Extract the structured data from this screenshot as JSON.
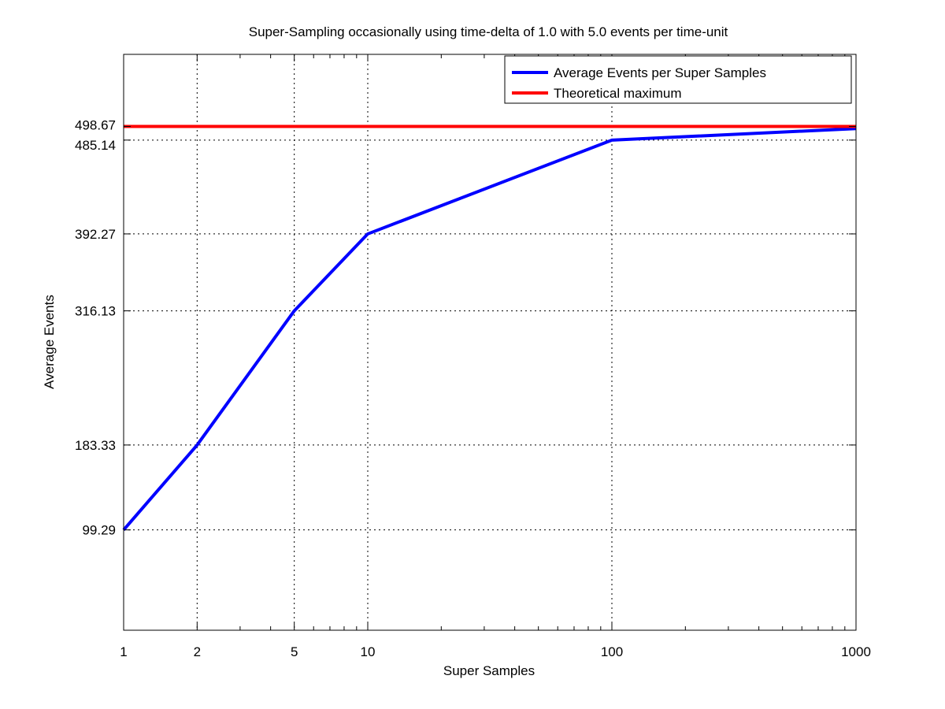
{
  "chart_data": {
    "type": "line",
    "title": "Super-Sampling occasionally using time-delta of 1.0 with 5.0 events per time-unit",
    "xlabel": "Super Samples",
    "ylabel": "Average Events",
    "xscale": "log",
    "xlim": [
      1,
      1000
    ],
    "ylim": [
      0,
      570
    ],
    "x_ticks": [
      1,
      2,
      5,
      10,
      100,
      1000
    ],
    "x_tick_labels": [
      "1",
      "2",
      "5",
      "10",
      "100",
      "1000"
    ],
    "y_ticks": [
      99.29,
      183.33,
      316.13,
      392.27,
      485.14,
      498.67
    ],
    "y_tick_labels": [
      "99.29",
      "183.33",
      "316.13",
      "392.27",
      "485.14",
      "498.67"
    ],
    "x_minor_ticks": [
      3,
      4,
      6,
      7,
      8,
      9,
      20,
      30,
      40,
      50,
      60,
      70,
      80,
      90,
      200,
      300,
      400,
      500,
      600,
      700,
      800,
      900
    ],
    "grid": true,
    "legend_position": "top-right",
    "series": [
      {
        "name": "Average Events per Super Samples",
        "color": "#0000ff",
        "x": [
          1,
          2,
          5,
          10,
          100,
          1000
        ],
        "y": [
          99.29,
          183.33,
          316.13,
          392.27,
          485.14,
          496.5
        ]
      },
      {
        "name": "Theoretical maximum",
        "color": "#ff0000",
        "x": [
          1,
          1000
        ],
        "y": [
          498.67,
          498.67
        ]
      }
    ]
  }
}
